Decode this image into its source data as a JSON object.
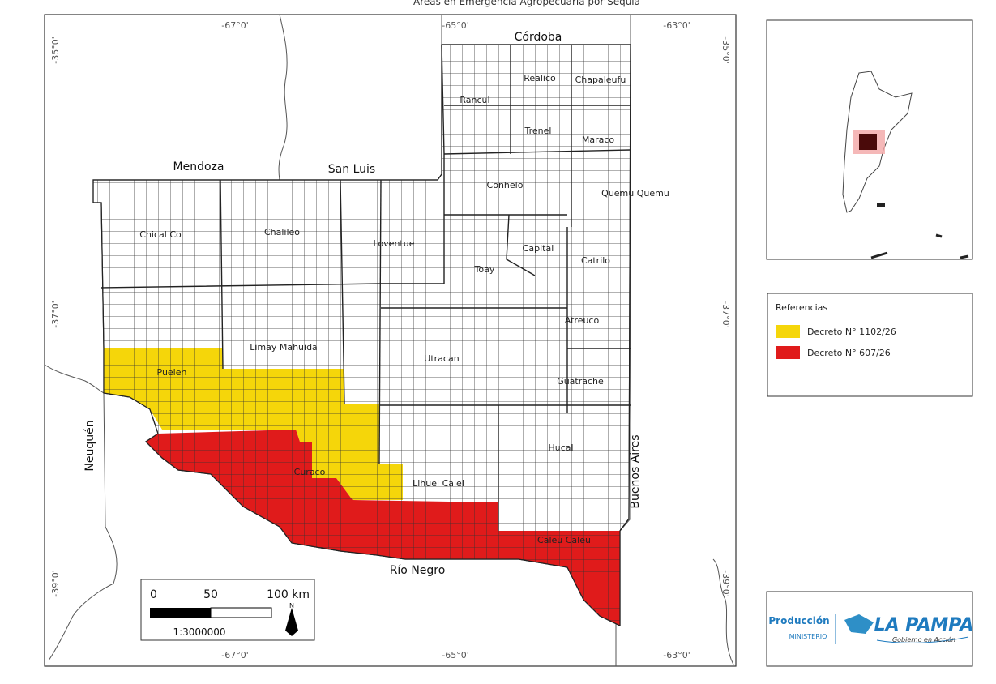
{
  "title": "Áreas en Emergencia Agropecuaria por Sequía",
  "coordinates": {
    "top": [
      "-67°0'",
      "-65°0'",
      "-63°0'"
    ],
    "bottom": [
      "-67°0'",
      "-65°0'",
      "-63°0'"
    ],
    "left": [
      "-35°0'",
      "-37°0'",
      "-39°0'"
    ],
    "right": [
      "-35°0'",
      "-37°0'",
      "-39°0'"
    ]
  },
  "provinces": [
    "Córdoba",
    "Mendoza",
    "San Luis",
    "Neuquén",
    "Buenos Aires",
    "Río Negro"
  ],
  "departments": [
    "Realico",
    "Chapaleufu",
    "Rancul",
    "Trenel",
    "Maraco",
    "Conhelo",
    "Quemu Quemu",
    "Chical Co",
    "Chalileo",
    "Loventue",
    "Capital",
    "Toay",
    "Catrilo",
    "Atreuco",
    "Limay Mahuida",
    "Puelen",
    "Utracan",
    "Guatrache",
    "Hucal",
    "Curaco",
    "Lihuel Calel",
    "Caleu Caleu"
  ],
  "legend": {
    "title": "Referencias",
    "items": [
      {
        "label": "Decreto N° 1102/26",
        "color": "#f5d60a"
      },
      {
        "label": "Decreto N° 607/26",
        "color": "#e01b1b"
      }
    ]
  },
  "scale_bar": {
    "labels": [
      "0",
      "50",
      "100 km"
    ],
    "ratio": "1:3000000",
    "north": "N"
  },
  "logo": {
    "ministry": "Producción",
    "ministry_sub": "MINISTERIO",
    "province": "LA PAMPA",
    "slogan": "Gobierno en Acción"
  }
}
